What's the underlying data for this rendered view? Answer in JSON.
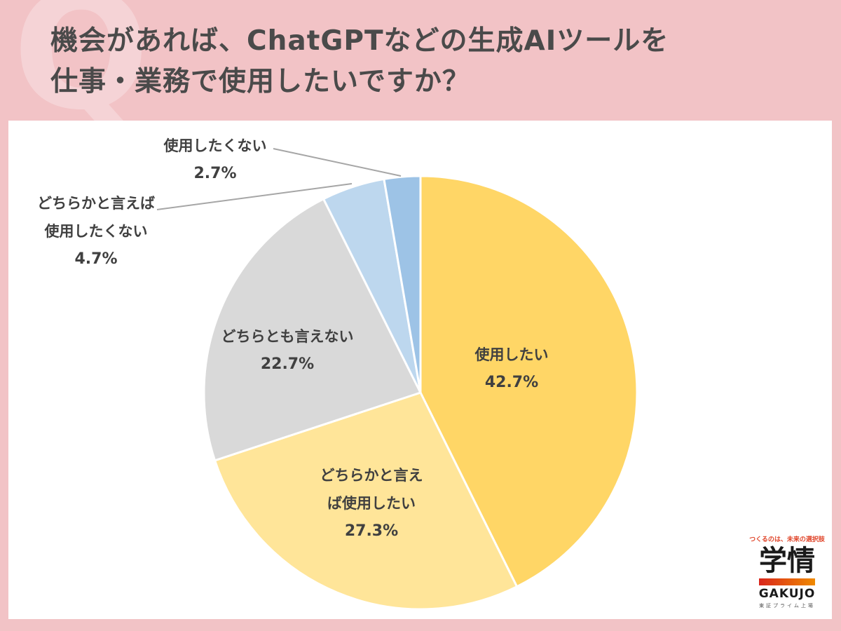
{
  "title": {
    "line1": "機会があれば、ChatGPTなどの生成AIツールを",
    "line2": "仕事・業務で使用したいですか？",
    "q_mark": "Q"
  },
  "colors": {
    "background": "#F2C3C6",
    "text": "#404040",
    "slice_1": "#FFD666",
    "slice_2": "#FFE599",
    "slice_3": "#D9D9D9",
    "slice_4": "#BDD7EE",
    "slice_5": "#9DC3E6"
  },
  "chart_data": {
    "type": "pie",
    "title": "機会があれば、ChatGPTなどの生成AIツールを仕事・業務で使用したいですか？",
    "categories": [
      "使用したい",
      "どちらかと言えば使用したい",
      "どちらとも言えない",
      "どちらかと言えば使用したくない",
      "使用したくない"
    ],
    "values": [
      42.7,
      27.3,
      22.7,
      4.7,
      2.7
    ],
    "unit": "%",
    "start_angle": "12 o'clock",
    "direction": "clockwise",
    "legend": "none (data labels on slices)"
  },
  "labels": {
    "s1": {
      "name": "使用したい",
      "pct": "42.7%"
    },
    "s2": {
      "name_l1": "どちらかと言え",
      "name_l2": "ば使用したい",
      "pct": "27.3%"
    },
    "s3": {
      "name": "どちらとも言えない",
      "pct": "22.7%"
    },
    "s4": {
      "name_l1": "どちらかと言えば",
      "name_l2": "使用したくない",
      "pct": "4.7%"
    },
    "s5": {
      "name": "使用したくない",
      "pct": "2.7%"
    }
  },
  "logo": {
    "tagline": "つくるのは、未来の選択肢",
    "kanji": "学情",
    "english": "GAKUJO",
    "sub": "東証プライム上場"
  }
}
